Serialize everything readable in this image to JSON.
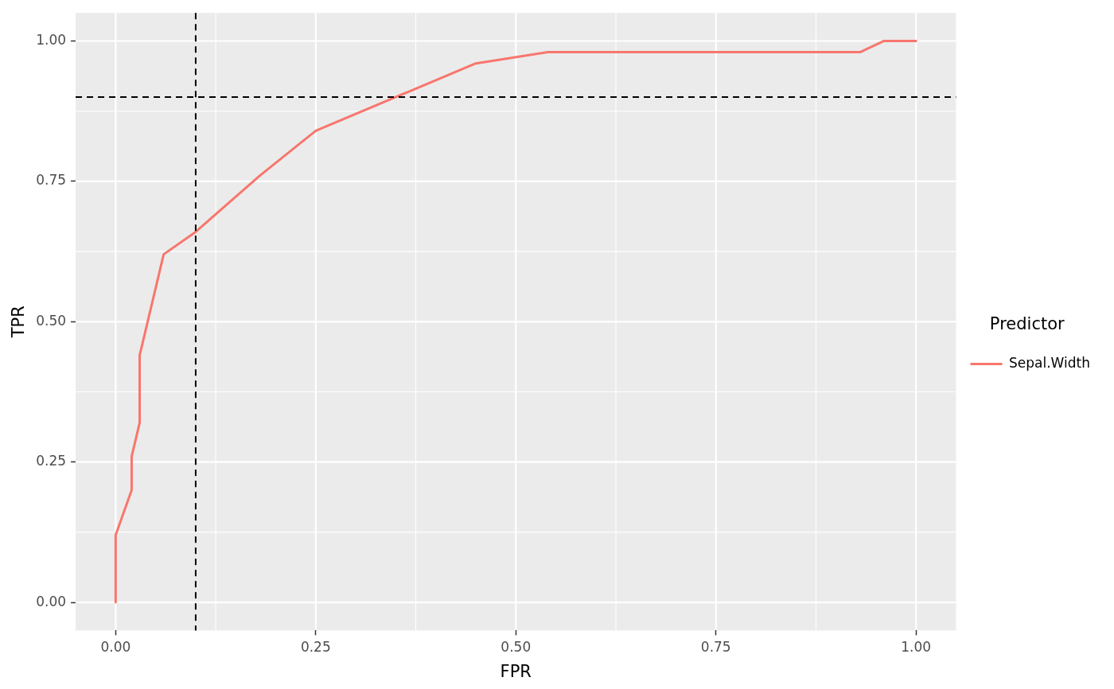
{
  "chart_data": {
    "type": "line",
    "xlabel": "FPR",
    "ylabel": "TPR",
    "legend_title": "Predictor",
    "legend": "right",
    "grid": true,
    "marker": "none",
    "line_style": "solid",
    "xlim": [
      -0.05,
      1.05
    ],
    "ylim": [
      -0.05,
      1.05
    ],
    "xticks": [
      {
        "value": 0,
        "label": "0.00"
      },
      {
        "value": 0.25,
        "label": "0.25"
      },
      {
        "value": 0.5,
        "label": "0.50"
      },
      {
        "value": 0.75,
        "label": "0.75"
      },
      {
        "value": 1,
        "label": "1.00"
      }
    ],
    "yticks": [
      {
        "value": 0,
        "label": "0.00"
      },
      {
        "value": 0.25,
        "label": "0.25"
      },
      {
        "value": 0.5,
        "label": "0.50"
      },
      {
        "value": 0.75,
        "label": "0.75"
      },
      {
        "value": 1,
        "label": "1.00"
      }
    ],
    "series": [
      {
        "name": "Sepal.Width",
        "color": "#f8766d",
        "x": [
          0,
          0,
          0.02,
          0.02,
          0.03,
          0.03,
          0.06,
          0.1,
          0.18,
          0.25,
          0.45,
          0.54,
          0.93,
          0.96,
          1
        ],
        "values": [
          0,
          0.12,
          0.2,
          0.26,
          0.32,
          0.44,
          0.62,
          0.66,
          0.76,
          0.84,
          0.96,
          0.98,
          0.98,
          1,
          1
        ]
      }
    ],
    "ref_lines": [
      {
        "axis": "x",
        "value": 0.1,
        "color": "#000000",
        "line_style": "dashed"
      },
      {
        "axis": "y",
        "value": 0.9,
        "color": "#000000",
        "line_style": "dashed"
      }
    ]
  }
}
